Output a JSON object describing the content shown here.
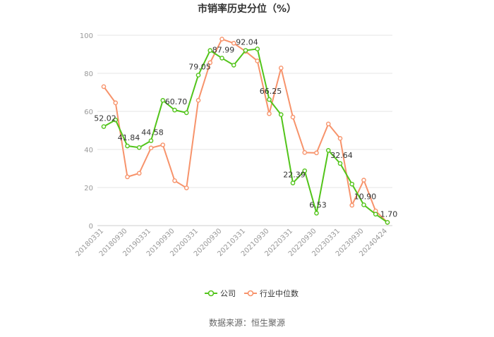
{
  "chart_data": {
    "type": "line",
    "title": "市销率历史分位（%）",
    "source": "数据来源：恒生聚源",
    "ylim": [
      0,
      100
    ],
    "yticks": [
      0,
      20,
      40,
      60,
      80,
      100
    ],
    "grid": true,
    "legend_position": "bottom",
    "categories": [
      "20180331",
      "",
      "20180930",
      "",
      "20190331",
      "",
      "20190930",
      "",
      "20200331",
      "",
      "20200930",
      "",
      "20210331",
      "",
      "20210930",
      "",
      "20220331",
      "",
      "20220930",
      "",
      "20230331",
      "",
      "20230930",
      "",
      "20240424"
    ],
    "series": [
      {
        "name": "公司",
        "color": "#52c41a",
        "values": [
          52.02,
          55.5,
          41.84,
          41.0,
          44.58,
          65.8,
          60.7,
          59.3,
          79.05,
          92.0,
          87.99,
          84.3,
          92.04,
          92.8,
          66.25,
          58.3,
          22.39,
          28.8,
          6.53,
          39.5,
          32.64,
          21.8,
          10.9,
          6.0,
          1.7
        ],
        "labels": [
          "52.02",
          "",
          "41.84",
          "",
          "44.58",
          "",
          "60.70",
          "",
          "79.05",
          "",
          "87.99",
          "",
          "92.04",
          "",
          "66.25",
          "",
          "22.39",
          "",
          "6.53",
          "",
          "32.64",
          "",
          "10.90",
          "",
          "1.70"
        ]
      },
      {
        "name": "行业中位数",
        "color": "#f7936b",
        "values": [
          73.0,
          64.5,
          25.6,
          27.5,
          40.8,
          42.4,
          23.6,
          19.8,
          65.8,
          85.6,
          98.0,
          95.8,
          91.5,
          86.5,
          58.8,
          82.8,
          57.0,
          38.4,
          38.2,
          53.4,
          45.8,
          10.7,
          23.9,
          7.7,
          1.7
        ]
      }
    ]
  }
}
